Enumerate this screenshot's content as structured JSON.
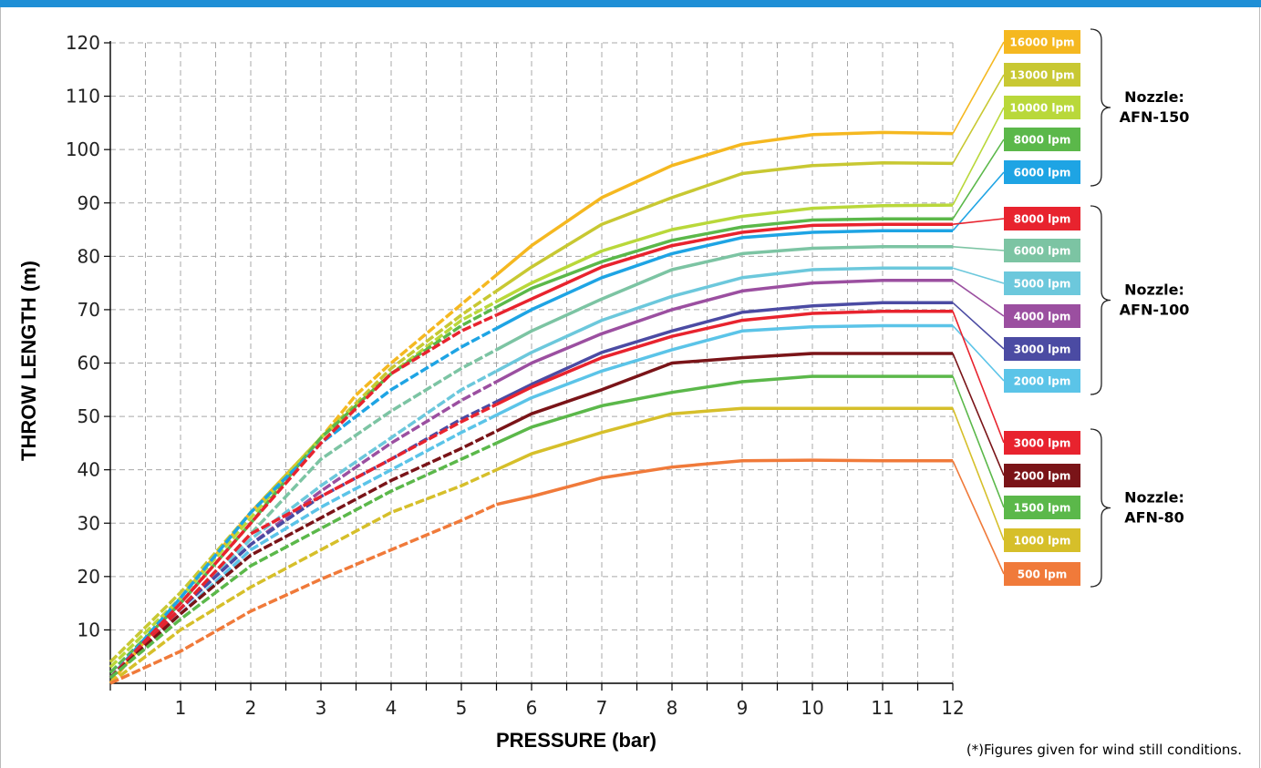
{
  "chart_data": {
    "type": "line",
    "xlabel": "PRESSURE (bar)",
    "ylabel": "THROW LENGTH (m)",
    "xlim": [
      0,
      12
    ],
    "ylim": [
      0,
      120
    ],
    "x_ticks": [
      "1",
      "2",
      "3",
      "4",
      "5",
      "6",
      "7",
      "8",
      "9",
      "10",
      "11",
      "12"
    ],
    "y_ticks": [
      "10",
      "20",
      "30",
      "40",
      "50",
      "60",
      "70",
      "80",
      "90",
      "100",
      "110",
      "120"
    ],
    "grid": true,
    "legend_position": "right",
    "footnote": "(*)Figures given for wind still conditions.",
    "groups": [
      {
        "label_line1": "Nozzle:",
        "label_line2": "AFN-150",
        "series": [
          0,
          1,
          2,
          3,
          4
        ]
      },
      {
        "label_line1": "Nozzle:",
        "label_line2": "AFN-100",
        "series": [
          5,
          6,
          7,
          8,
          9,
          10
        ]
      },
      {
        "label_line1": "Nozzle:",
        "label_line2": "AFN-80",
        "series": [
          11,
          12,
          13,
          14,
          15
        ]
      }
    ],
    "series": [
      {
        "name": "16000 lpm",
        "color": "#f5b820",
        "x": [
          0,
          1,
          2,
          3,
          3.5,
          4,
          5,
          6,
          7,
          8,
          9,
          10,
          11,
          12
        ],
        "y": [
          0,
          16,
          32,
          46,
          54,
          60,
          71,
          82,
          91,
          97,
          101,
          102.8,
          103.2,
          103
        ]
      },
      {
        "name": "13000 lpm",
        "color": "#c8c832",
        "x": [
          0,
          1,
          2,
          3,
          4,
          5,
          6,
          7,
          8,
          9,
          10,
          11,
          12
        ],
        "y": [
          4,
          17,
          32,
          46,
          59,
          69,
          78,
          86,
          91,
          95.5,
          97,
          97.5,
          97.4
        ]
      },
      {
        "name": "10000 lpm",
        "color": "#b9d83a",
        "x": [
          0,
          1,
          2,
          3,
          4,
          5,
          6,
          7,
          8,
          9,
          10,
          11,
          12
        ],
        "y": [
          3,
          16,
          31,
          46,
          58,
          68,
          75,
          81,
          85,
          87.5,
          89,
          89.5,
          89.6
        ]
      },
      {
        "name": "8000 lpm",
        "color": "#5bb84a",
        "x": [
          0,
          1,
          2,
          3,
          4,
          5,
          6,
          7,
          8,
          9,
          10,
          11,
          12
        ],
        "y": [
          2,
          15,
          30,
          46,
          58,
          67,
          74,
          79,
          83,
          85.5,
          86.8,
          87,
          87
        ]
      },
      {
        "name": "6000 lpm",
        "color": "#1ea4e4",
        "x": [
          0,
          1,
          2,
          3,
          4,
          5,
          6,
          7,
          8,
          9,
          10,
          11,
          12
        ],
        "y": [
          1,
          16,
          32,
          45,
          55,
          63,
          70,
          76,
          80.5,
          83.5,
          84.5,
          84.8,
          84.8
        ]
      },
      {
        "name": "8000 lpm",
        "color": "#e8232e",
        "x": [
          0,
          1,
          2,
          3,
          4,
          5,
          6,
          7,
          8,
          9,
          10,
          11,
          12
        ],
        "y": [
          1,
          15,
          30,
          45,
          58,
          66,
          72,
          78,
          82,
          84.5,
          85.8,
          86,
          86
        ]
      },
      {
        "name": "6000 lpm",
        "color": "#7cc4a3",
        "x": [
          0,
          1,
          2,
          3,
          4,
          5,
          6,
          7,
          8,
          9,
          10,
          11,
          12
        ],
        "y": [
          1,
          14,
          28,
          42,
          51,
          59,
          66,
          72,
          77.5,
          80.5,
          81.5,
          81.8,
          81.8
        ]
      },
      {
        "name": "5000 lpm",
        "color": "#6cc8dc",
        "x": [
          0,
          1,
          2,
          3,
          4,
          5,
          6,
          7,
          8,
          9,
          10,
          11,
          12
        ],
        "y": [
          1,
          14,
          27,
          37,
          46,
          55,
          62,
          68,
          72.5,
          76,
          77.5,
          77.8,
          77.8
        ]
      },
      {
        "name": "4000 lpm",
        "color": "#9b4fa0",
        "x": [
          0,
          1,
          2,
          3,
          4,
          5,
          6,
          7,
          8,
          9,
          10,
          11,
          12
        ],
        "y": [
          1,
          14,
          26,
          36,
          45,
          53,
          60,
          65.5,
          70,
          73.5,
          75,
          75.5,
          75.5
        ]
      },
      {
        "name": "3000 lpm",
        "color": "#4b4ba3",
        "x": [
          0,
          1,
          2,
          3,
          4,
          5,
          6,
          7,
          8,
          9,
          10,
          11,
          12
        ],
        "y": [
          1,
          14,
          26,
          35,
          42,
          49.5,
          56,
          62,
          66,
          69.5,
          70.7,
          71.3,
          71.3
        ]
      },
      {
        "name": "2000 lpm",
        "color": "#5bc4e8",
        "x": [
          0,
          1,
          2,
          3,
          4,
          5,
          6,
          7,
          8,
          9,
          10,
          11,
          12
        ],
        "y": [
          1,
          13,
          25,
          33,
          40,
          47,
          53.5,
          58.5,
          62.5,
          66,
          66.8,
          67,
          67
        ]
      },
      {
        "name": "3000 lpm",
        "color": "#e8232e",
        "x": [
          0,
          1,
          2,
          3,
          4,
          5,
          6,
          7,
          8,
          9,
          10,
          11,
          12
        ],
        "y": [
          1,
          14,
          28,
          35,
          42,
          49,
          55.5,
          61,
          65,
          68,
          69.3,
          69.7,
          69.7
        ]
      },
      {
        "name": "2000 lpm",
        "color": "#7a1418",
        "x": [
          0,
          1,
          2,
          3,
          4,
          5,
          6,
          7,
          8,
          9,
          10,
          11,
          12
        ],
        "y": [
          1,
          13,
          24,
          31,
          38,
          44,
          50.5,
          55,
          60,
          61,
          61.8,
          61.8,
          61.8
        ]
      },
      {
        "name": "1500 lpm",
        "color": "#5bb84a",
        "x": [
          0,
          1,
          2,
          3,
          4,
          5,
          6,
          7,
          8,
          9,
          10,
          11,
          12
        ],
        "y": [
          1,
          12,
          22,
          29,
          36,
          42,
          48,
          52,
          54.5,
          56.5,
          57.5,
          57.5,
          57.5
        ]
      },
      {
        "name": "1000 lpm",
        "color": "#d6bf2a",
        "x": [
          0,
          1,
          2,
          3,
          4,
          5,
          6,
          7,
          8,
          9,
          10,
          11,
          12
        ],
        "y": [
          0,
          10,
          18,
          25,
          32,
          37,
          43,
          47,
          50.5,
          51.5,
          51.5,
          51.5,
          51.5
        ]
      },
      {
        "name": "500 lpm",
        "color": "#f07a3a",
        "x": [
          0,
          1,
          2,
          3,
          4,
          5,
          5.5,
          6,
          7,
          8,
          9,
          10,
          11,
          12
        ],
        "y": [
          0,
          6,
          13.5,
          19.5,
          25,
          30.5,
          33.5,
          35,
          38.5,
          40.5,
          41.7,
          41.8,
          41.7,
          41.7
        ]
      }
    ]
  }
}
